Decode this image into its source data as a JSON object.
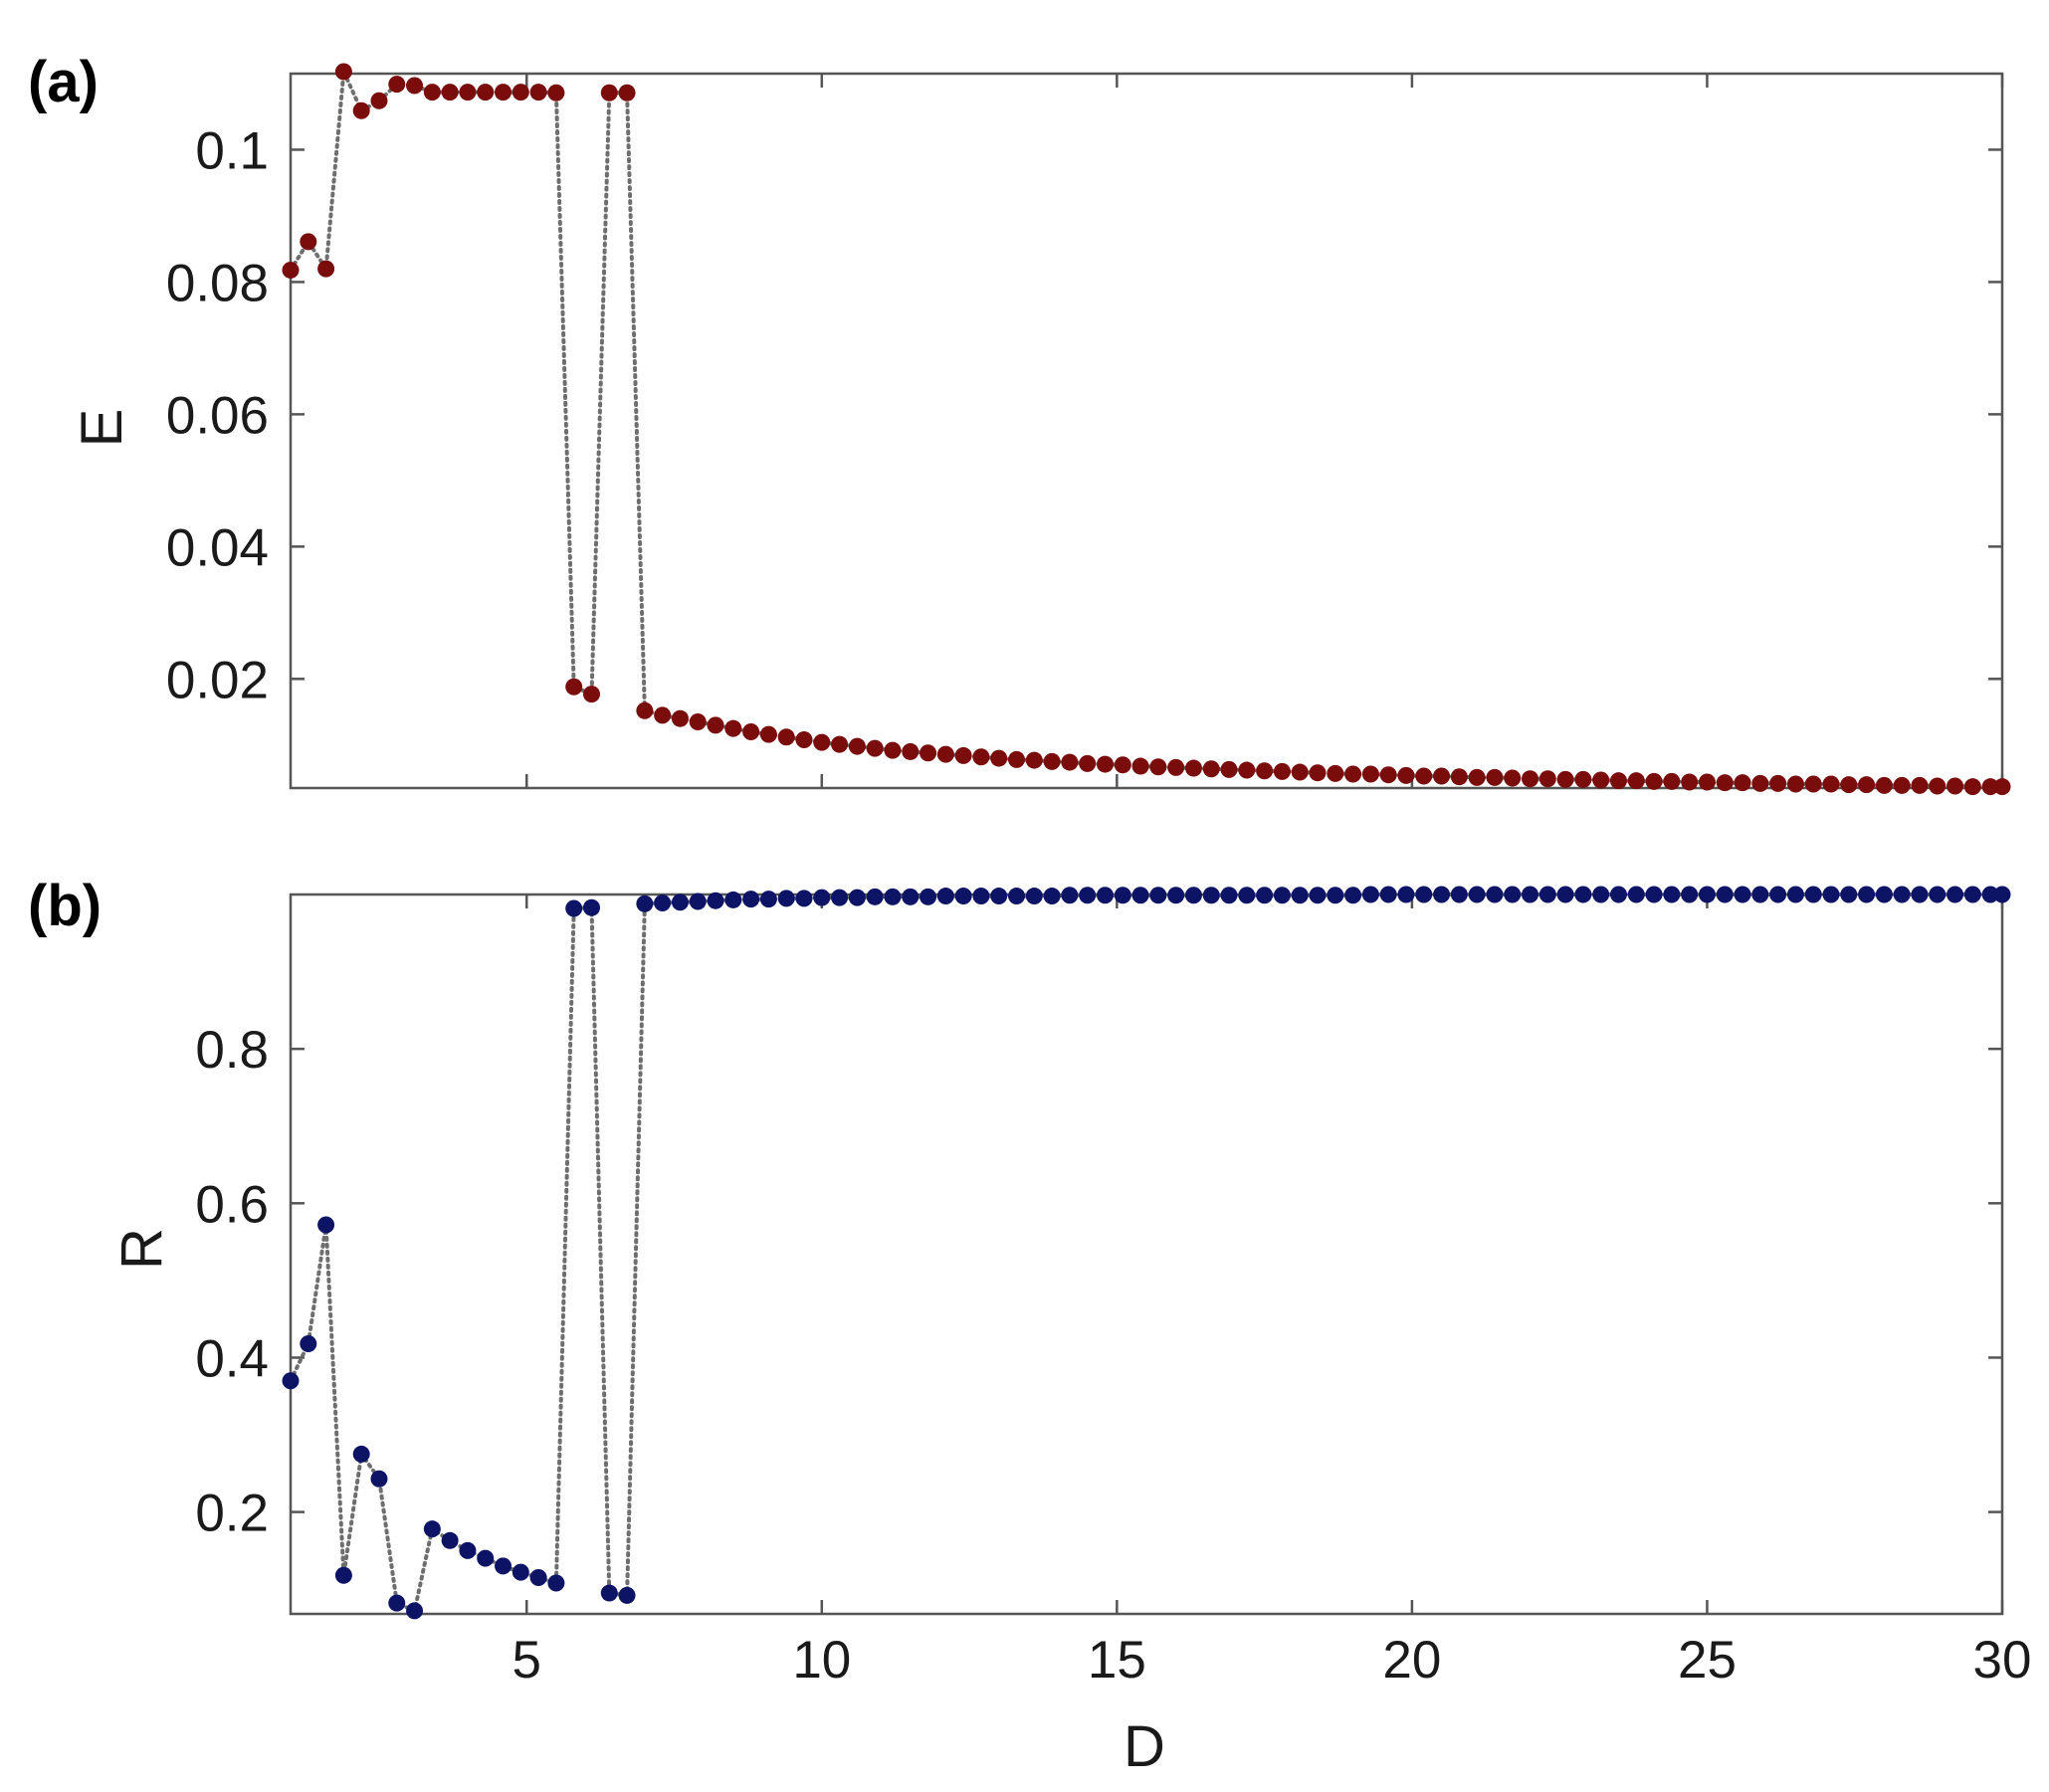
{
  "chart_data": [
    {
      "type": "scatter",
      "panel_label": "(a)",
      "ylabel": "E",
      "xlabel": "",
      "xlim": [
        1,
        30
      ],
      "ylim": [
        0.0035,
        0.1115
      ],
      "xticks": [
        5,
        10,
        15,
        20,
        25,
        30
      ],
      "xtick_labels": [
        "",
        "",
        "",
        "",
        "",
        ""
      ],
      "yticks": [
        0.02,
        0.04,
        0.06,
        0.08,
        0.1
      ],
      "ytick_labels": [
        "0.02",
        "0.04",
        "0.06",
        "0.08",
        "0.1"
      ],
      "grid": false,
      "connector": "dotted",
      "connector_color": "#6e6e6e",
      "marker_color": "#7a0c0c",
      "series": [
        {
          "x": [
            1.0,
            1.3,
            1.6,
            1.9,
            2.2,
            2.5,
            2.8,
            3.1,
            3.4,
            3.7,
            4.0,
            4.3,
            4.6,
            4.9,
            5.2,
            5.5,
            5.8,
            6.1,
            6.4,
            6.7,
            7.0,
            7.3,
            7.6,
            7.9,
            8.2,
            8.5,
            8.8,
            9.1,
            9.4,
            9.7,
            10.0,
            10.3,
            10.6,
            10.9,
            11.2,
            11.5,
            11.8,
            12.1,
            12.4,
            12.7,
            13.0,
            13.3,
            13.6,
            13.9,
            14.2,
            14.5,
            14.8,
            15.1,
            15.4,
            15.7,
            16.0,
            16.3,
            16.6,
            16.9,
            17.2,
            17.5,
            17.8,
            18.1,
            18.4,
            18.7,
            19.0,
            19.3,
            19.6,
            19.9,
            20.2,
            20.5,
            20.8,
            21.1,
            21.4,
            21.7,
            22.0,
            22.3,
            22.6,
            22.9,
            23.2,
            23.5,
            23.8,
            24.1,
            24.4,
            24.7,
            25.0,
            25.3,
            25.6,
            25.9,
            26.2,
            26.5,
            26.8,
            27.1,
            27.4,
            27.7,
            28.0,
            28.3,
            28.6,
            28.9,
            29.2,
            29.5,
            29.8,
            30.0
          ],
          "y": [
            0.0818,
            0.0861,
            0.082,
            0.1118,
            0.1059,
            0.1074,
            0.1099,
            0.1097,
            0.1087,
            0.1087,
            0.1087,
            0.1087,
            0.1087,
            0.1087,
            0.1087,
            0.1086,
            0.0188,
            0.0177,
            0.1086,
            0.1086,
            0.0152,
            0.0145,
            0.014,
            0.0135,
            0.013,
            0.0125,
            0.012,
            0.0116,
            0.0112,
            0.0108,
            0.0104,
            0.0101,
            0.0098,
            0.0095,
            0.0092,
            0.009,
            0.0088,
            0.0086,
            0.0084,
            0.0082,
            0.008,
            0.0078,
            0.0077,
            0.0075,
            0.0074,
            0.0072,
            0.0071,
            0.007,
            0.0068,
            0.0067,
            0.0066,
            0.0065,
            0.0064,
            0.0063,
            0.0062,
            0.0061,
            0.006,
            0.0059,
            0.0058,
            0.0057,
            0.0056,
            0.0056,
            0.0055,
            0.0054,
            0.0053,
            0.0053,
            0.0052,
            0.0051,
            0.0051,
            0.005,
            0.0049,
            0.0049,
            0.0048,
            0.0048,
            0.0047,
            0.0046,
            0.0046,
            0.0045,
            0.0045,
            0.0044,
            0.0044,
            0.0043,
            0.0043,
            0.0042,
            0.0042,
            0.0041,
            0.0041,
            0.0041,
            0.004,
            0.004,
            0.0039,
            0.0039,
            0.0039,
            0.0038,
            0.0038,
            0.0037,
            0.0037,
            0.0037
          ]
        }
      ]
    },
    {
      "type": "scatter",
      "panel_label": "(b)",
      "ylabel": "R",
      "xlabel": "D",
      "xlim": [
        1,
        30
      ],
      "ylim": [
        0.068,
        1.0
      ],
      "xticks": [
        5,
        10,
        15,
        20,
        25,
        30
      ],
      "xtick_labels": [
        "5",
        "10",
        "15",
        "20",
        "25",
        "30"
      ],
      "yticks": [
        0.2,
        0.4,
        0.6,
        0.8
      ],
      "ytick_labels": [
        "0.2",
        "0.4",
        "0.6",
        "0.8"
      ],
      "grid": false,
      "connector": "dotted",
      "connector_color": "#6e6e6e",
      "marker_color": "#0d1466",
      "series": [
        {
          "x": [
            1.0,
            1.3,
            1.6,
            1.9,
            2.2,
            2.5,
            2.8,
            3.1,
            3.4,
            3.7,
            4.0,
            4.3,
            4.6,
            4.9,
            5.2,
            5.5,
            5.8,
            6.1,
            6.4,
            6.7,
            7.0,
            7.3,
            7.6,
            7.9,
            8.2,
            8.5,
            8.8,
            9.1,
            9.4,
            9.7,
            10.0,
            10.3,
            10.6,
            10.9,
            11.2,
            11.5,
            11.8,
            12.1,
            12.4,
            12.7,
            13.0,
            13.3,
            13.6,
            13.9,
            14.2,
            14.5,
            14.8,
            15.1,
            15.4,
            15.7,
            16.0,
            16.3,
            16.6,
            16.9,
            17.2,
            17.5,
            17.8,
            18.1,
            18.4,
            18.7,
            19.0,
            19.3,
            19.6,
            19.9,
            20.2,
            20.5,
            20.8,
            21.1,
            21.4,
            21.7,
            22.0,
            22.3,
            22.6,
            22.9,
            23.2,
            23.5,
            23.8,
            24.1,
            24.4,
            24.7,
            25.0,
            25.3,
            25.6,
            25.9,
            26.2,
            26.5,
            26.8,
            27.1,
            27.4,
            27.7,
            28.0,
            28.3,
            28.6,
            28.9,
            29.2,
            29.5,
            29.8,
            30.0
          ],
          "y": [
            0.37,
            0.418,
            0.572,
            0.118,
            0.275,
            0.243,
            0.082,
            0.072,
            0.178,
            0.163,
            0.15,
            0.14,
            0.13,
            0.122,
            0.115,
            0.108,
            0.982,
            0.983,
            0.095,
            0.092,
            0.988,
            0.989,
            0.99,
            0.991,
            0.992,
            0.993,
            0.994,
            0.994,
            0.995,
            0.995,
            0.996,
            0.996,
            0.996,
            0.997,
            0.997,
            0.997,
            0.997,
            0.998,
            0.998,
            0.998,
            0.998,
            0.998,
            0.998,
            0.998,
            0.999,
            0.999,
            0.999,
            0.999,
            0.999,
            0.999,
            0.999,
            0.999,
            0.999,
            0.999,
            0.999,
            0.999,
            0.999,
            0.999,
            0.999,
            0.999,
            0.999,
            1.0,
            1.0,
            1.0,
            1.0,
            1.0,
            1.0,
            1.0,
            1.0,
            1.0,
            1.0,
            1.0,
            1.0,
            1.0,
            1.0,
            1.0,
            1.0,
            1.0,
            1.0,
            1.0,
            1.0,
            1.0,
            1.0,
            1.0,
            1.0,
            1.0,
            1.0,
            1.0,
            1.0,
            1.0,
            1.0,
            1.0,
            1.0,
            1.0,
            1.0,
            1.0,
            1.0,
            1.0
          ]
        }
      ]
    }
  ]
}
